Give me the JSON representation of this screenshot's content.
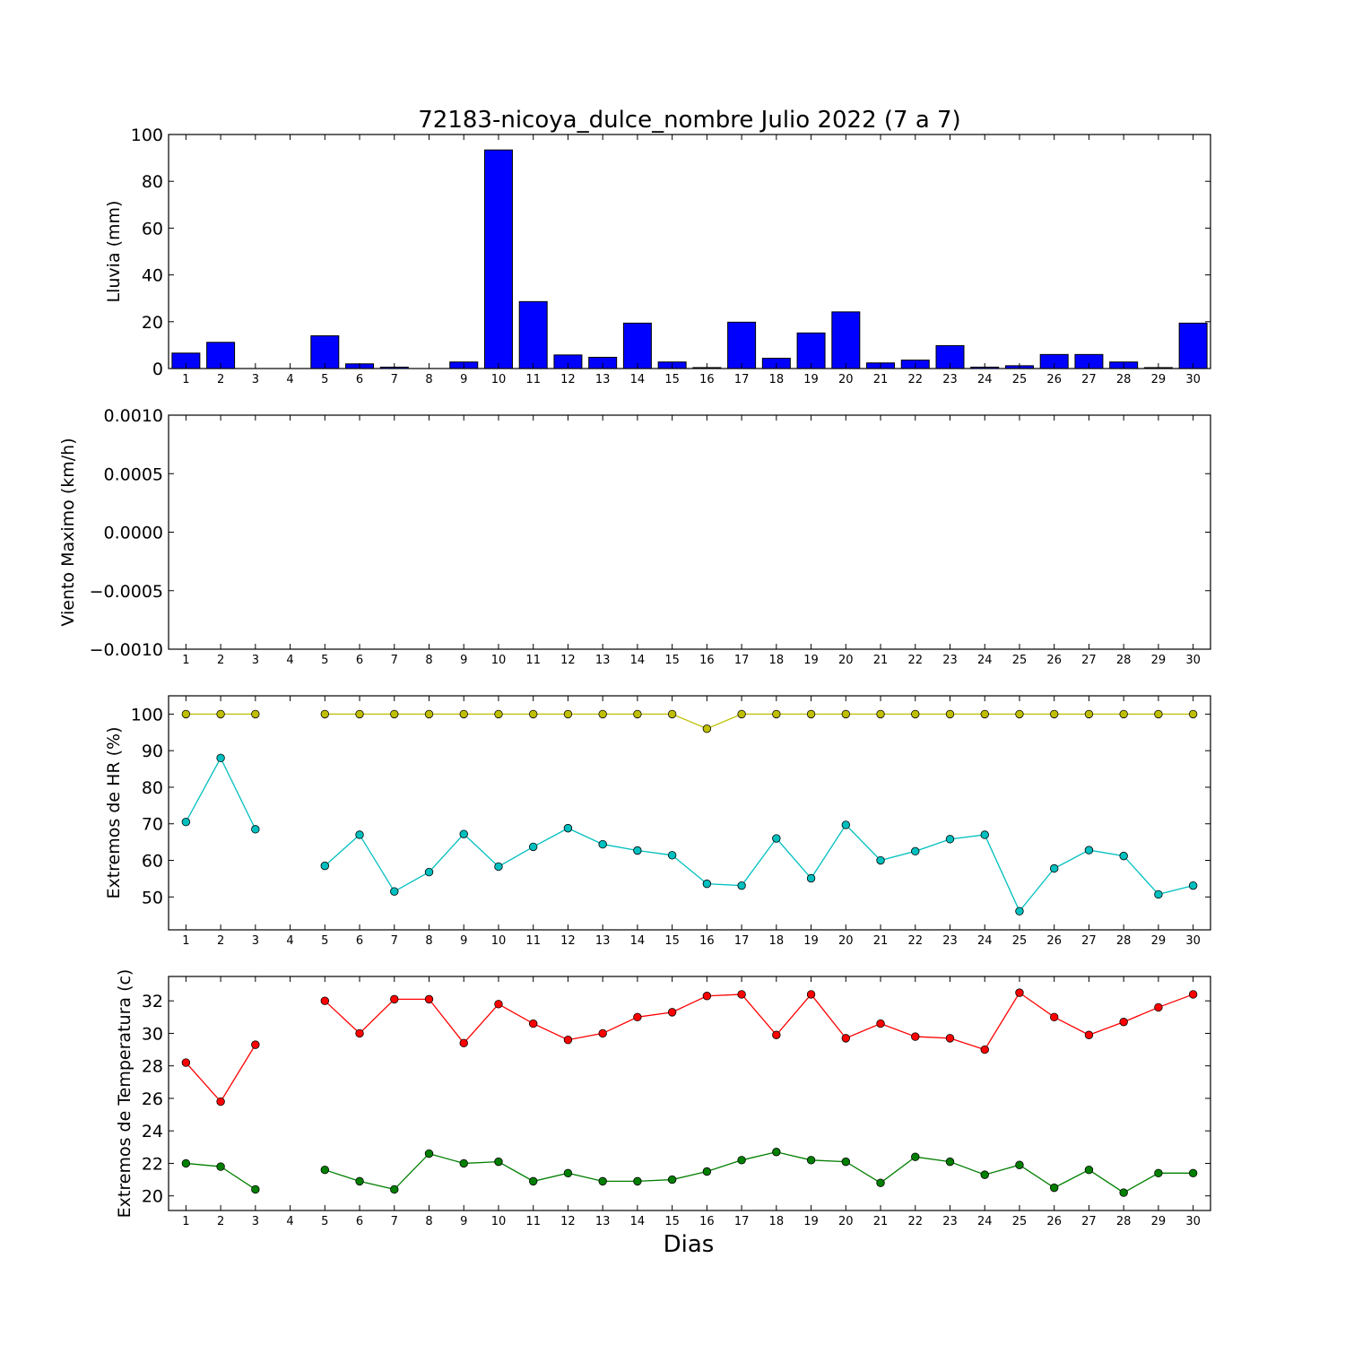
{
  "chart_data": [
    {
      "type": "bar",
      "title": "72183-nicoya_dulce_nombre Julio 2022  (7 a 7)",
      "ylabel": "Lluvia (mm)",
      "xlabel": "",
      "ylim": [
        0,
        100
      ],
      "yticks": [
        "0",
        "20",
        "40",
        "60",
        "80",
        "100"
      ],
      "x": [
        1,
        2,
        3,
        4,
        5,
        6,
        7,
        8,
        9,
        10,
        11,
        12,
        13,
        14,
        15,
        16,
        17,
        18,
        19,
        20,
        21,
        22,
        23,
        24,
        25,
        26,
        27,
        28,
        29,
        30
      ],
      "values": [
        6.6,
        11.2,
        0,
        0,
        14,
        2,
        0.6,
        0,
        2.8,
        93.4,
        28.6,
        5.8,
        4.8,
        19.4,
        2.8,
        0.4,
        19.8,
        4.4,
        15.2,
        24.2,
        2.4,
        3.6,
        9.8,
        0.6,
        1.2,
        6,
        6,
        2.8,
        0.4,
        19.4
      ],
      "color": "#0000ff"
    },
    {
      "type": "line",
      "title": "",
      "ylabel": "Viento Maximo (km/h)",
      "xlabel": "",
      "ylim": [
        -0.001,
        0.001
      ],
      "yticks": [
        "−0.0010",
        "−0.0005",
        "0.0000",
        "0.0005",
        "0.0010"
      ],
      "x": [
        1,
        2,
        3,
        4,
        5,
        6,
        7,
        8,
        9,
        10,
        11,
        12,
        13,
        14,
        15,
        16,
        17,
        18,
        19,
        20,
        21,
        22,
        23,
        24,
        25,
        26,
        27,
        28,
        29,
        30
      ],
      "series": []
    },
    {
      "type": "line",
      "title": "",
      "ylabel": "Extremos de HR (%)",
      "xlabel": "",
      "ylim": [
        41,
        105
      ],
      "yticks": [
        "50",
        "60",
        "70",
        "80",
        "90",
        "100"
      ],
      "x": [
        1,
        2,
        3,
        4,
        5,
        6,
        7,
        8,
        9,
        10,
        11,
        12,
        13,
        14,
        15,
        16,
        17,
        18,
        19,
        20,
        21,
        22,
        23,
        24,
        25,
        26,
        27,
        28,
        29,
        30
      ],
      "series": [
        {
          "color": "#bfbf00",
          "values": [
            100,
            100,
            100,
            null,
            100,
            100,
            100,
            100,
            100,
            100,
            100,
            100,
            100,
            100,
            100,
            96,
            100,
            100,
            100,
            100,
            100,
            100,
            100,
            100,
            100,
            100,
            100,
            100,
            100,
            100
          ]
        },
        {
          "color": "#00bfbf",
          "values": [
            70.5,
            88,
            68.5,
            null,
            58.5,
            67,
            51.5,
            56.8,
            67.2,
            58.3,
            63.7,
            68.8,
            64.4,
            62.7,
            61.4,
            53.6,
            53.1,
            66,
            55.1,
            69.7,
            60,
            62.5,
            65.8,
            67,
            46.1,
            57.8,
            62.8,
            61.2,
            50.7,
            53.1
          ]
        }
      ]
    },
    {
      "type": "line",
      "title": "",
      "ylabel": "Extremos de Temperatura (c)",
      "xlabel": "Dias",
      "ylim": [
        19.1,
        33.5
      ],
      "yticks": [
        "20",
        "22",
        "24",
        "26",
        "28",
        "30",
        "32"
      ],
      "x": [
        1,
        2,
        3,
        4,
        5,
        6,
        7,
        8,
        9,
        10,
        11,
        12,
        13,
        14,
        15,
        16,
        17,
        18,
        19,
        20,
        21,
        22,
        23,
        24,
        25,
        26,
        27,
        28,
        29,
        30
      ],
      "series": [
        {
          "color": "#ff0000",
          "values": [
            28.2,
            25.8,
            29.3,
            null,
            32,
            30,
            32.1,
            32.1,
            29.4,
            31.8,
            30.6,
            29.6,
            30,
            31,
            31.3,
            32.3,
            32.4,
            29.9,
            32.4,
            29.7,
            30.6,
            29.8,
            29.7,
            29,
            32.5,
            31,
            29.9,
            30.7,
            31.6,
            32.4
          ]
        },
        {
          "color": "#007f00",
          "values": [
            22,
            21.8,
            20.4,
            null,
            21.6,
            20.9,
            20.4,
            22.6,
            22,
            22.1,
            20.9,
            21.4,
            20.9,
            20.9,
            21,
            21.5,
            22.2,
            22.7,
            22.2,
            22.1,
            20.8,
            22.4,
            22.1,
            21.3,
            21.9,
            20.5,
            21.6,
            20.2,
            21.4,
            21.4
          ]
        }
      ]
    }
  ]
}
